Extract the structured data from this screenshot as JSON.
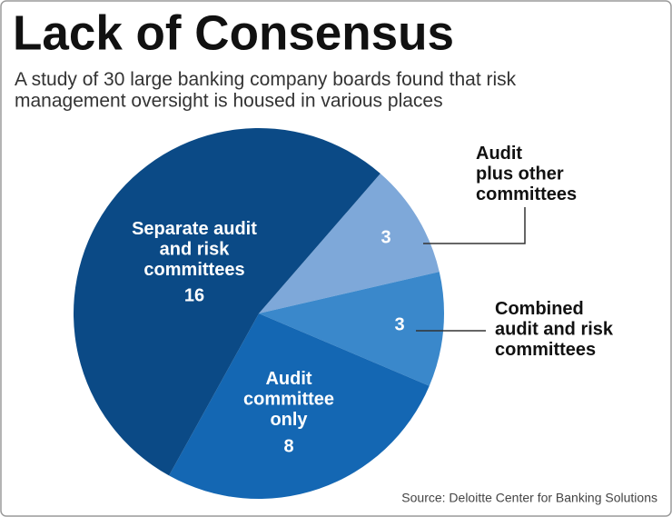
{
  "chart_data": {
    "type": "pie",
    "title": "Lack of Consensus",
    "subtitle": "A study of 30 large banking company boards found that risk\nmanagement oversight is housed in various places",
    "categories": [
      "Audit\nplus other\ncommittees",
      "Combined\naudit and risk\ncommittees",
      "Audit\ncommittee\nonly",
      "Separate audit\nand risk\ncommittees"
    ],
    "values": [
      3,
      3,
      8,
      16
    ],
    "colors": [
      "#7ea8d9",
      "#3a88cb",
      "#1467b3",
      "#0b4a86"
    ],
    "source": "Source: Deloitte Center for Banking Solutions"
  }
}
